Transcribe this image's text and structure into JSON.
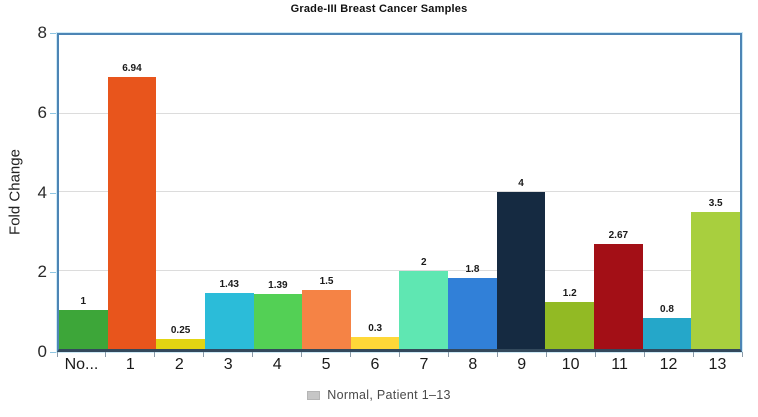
{
  "chart_data": {
    "type": "bar",
    "title": "Grade-III Breast Cancer Samples",
    "ylabel": "Fold Change",
    "xlabel": "",
    "ylim": [
      0,
      8
    ],
    "yticks": [
      0,
      2,
      4,
      6,
      8
    ],
    "grid": true,
    "legend_position": "bottom",
    "legend": {
      "label": "Normal, Patient 1–13",
      "swatch_color": "#c6c6c6"
    },
    "categories": [
      "No...",
      "1",
      "2",
      "3",
      "4",
      "5",
      "6",
      "7",
      "8",
      "9",
      "10",
      "11",
      "12",
      "13"
    ],
    "values": [
      1,
      6.94,
      0.25,
      1.43,
      1.39,
      1.5,
      0.3,
      2,
      1.8,
      4,
      1.2,
      2.67,
      0.8,
      3.5
    ],
    "value_labels": [
      "1",
      "6.94",
      "0.25",
      "1.43",
      "1.39",
      "1.5",
      "0.3",
      "2",
      "1.8",
      "4",
      "1.2",
      "2.67",
      "0.8",
      "3.5"
    ],
    "bar_colors": [
      "#3da639",
      "#e8551c",
      "#e2d512",
      "#2bbcd9",
      "#53d055",
      "#f58345",
      "#ffd838",
      "#5fe7b2",
      "#3180d8",
      "#152a41",
      "#92ba24",
      "#a30f16",
      "#25a7c9",
      "#a8cf3e"
    ],
    "colors": {
      "plot_border": "#4d85b5",
      "plot_border_halo": "#cde9f6",
      "baseline": "#33495c",
      "gridline": "#dcdcdc",
      "y_tick_mark": "#8fc6e2",
      "x_tick_mark": "#8a9aa8",
      "text": "#1a1a1a"
    }
  }
}
